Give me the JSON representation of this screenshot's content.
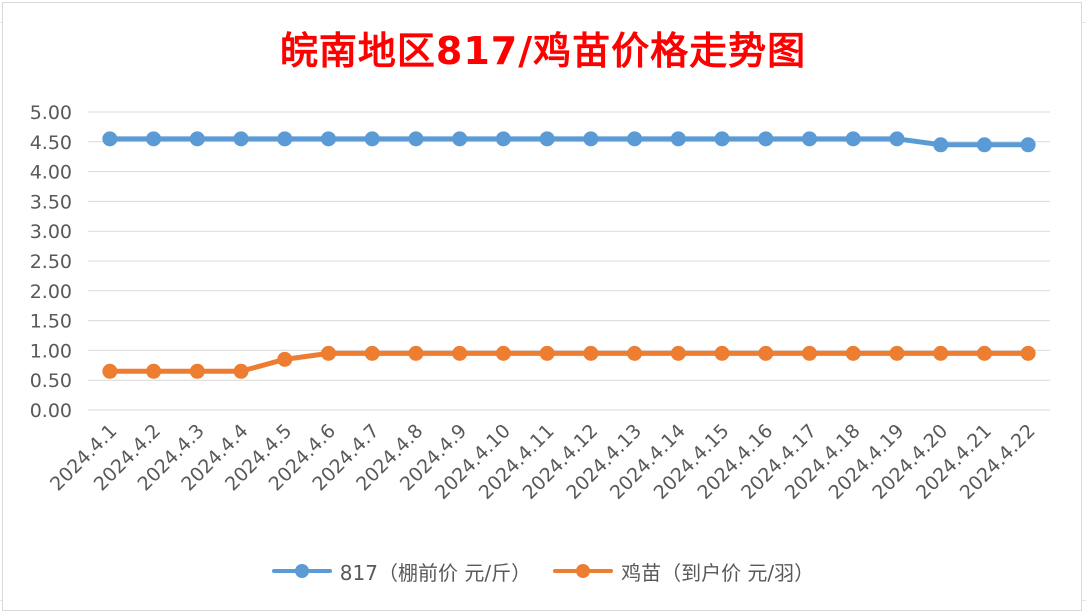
{
  "chart_data": {
    "type": "line",
    "title": "皖南地区817/鸡苗价格走势图",
    "categories": [
      "2024.4.1",
      "2024.4.2",
      "2024.4.3",
      "2024.4.4",
      "2024.4.5",
      "2024.4.6",
      "2024.4.7",
      "2024.4.8",
      "2024.4.9",
      "2024.4.10",
      "2024.4.11",
      "2024.4.12",
      "2024.4.13",
      "2024.4.14",
      "2024.4.15",
      "2024.4.16",
      "2024.4.17",
      "2024.4.18",
      "2024.4.19",
      "2024.4.20",
      "2024.4.21",
      "2024.4.22"
    ],
    "series": [
      {
        "name": "817（棚前价 元/斤）",
        "color": "#5b9bd5",
        "values": [
          4.55,
          4.55,
          4.55,
          4.55,
          4.55,
          4.55,
          4.55,
          4.55,
          4.55,
          4.55,
          4.55,
          4.55,
          4.55,
          4.55,
          4.55,
          4.55,
          4.55,
          4.55,
          4.55,
          4.45,
          4.45,
          4.45
        ]
      },
      {
        "name": "鸡苗（到户价 元/羽）",
        "color": "#ed7d31",
        "values": [
          0.65,
          0.65,
          0.65,
          0.65,
          0.85,
          0.95,
          0.95,
          0.95,
          0.95,
          0.95,
          0.95,
          0.95,
          0.95,
          0.95,
          0.95,
          0.95,
          0.95,
          0.95,
          0.95,
          0.95,
          0.95,
          0.95
        ]
      }
    ],
    "y_ticks": [
      "0.00",
      "0.50",
      "1.00",
      "1.50",
      "2.00",
      "2.50",
      "3.00",
      "3.50",
      "4.00",
      "4.50",
      "5.00"
    ],
    "ylim": [
      0,
      5
    ],
    "grid": true,
    "legend_position": "bottom"
  }
}
